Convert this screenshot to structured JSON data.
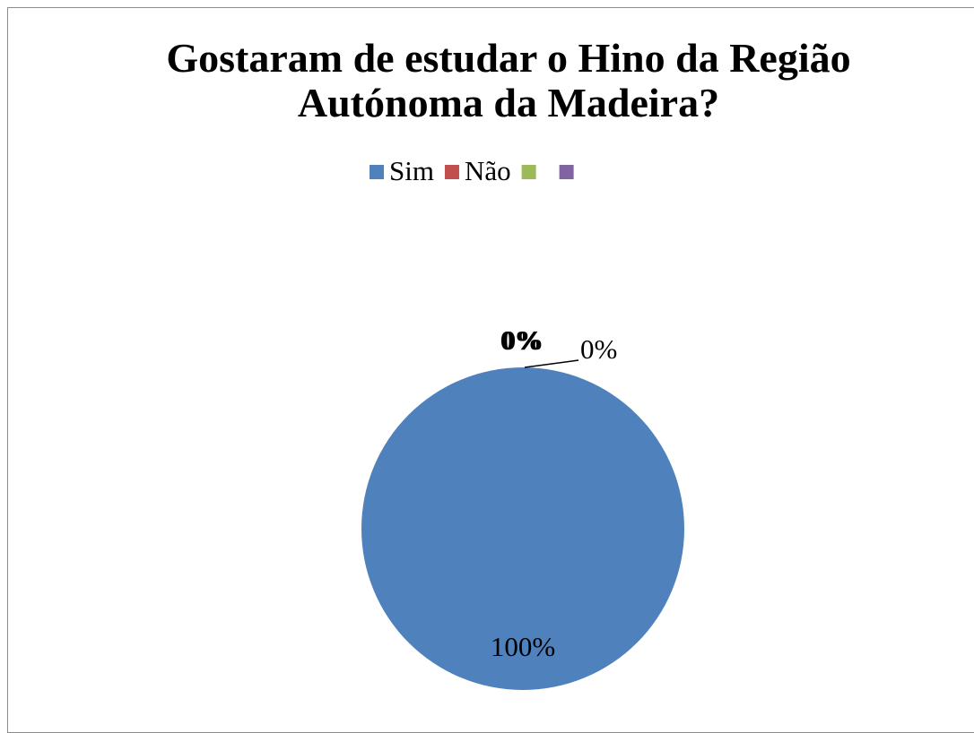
{
  "chart_data": {
    "type": "pie",
    "title": "Gostaram de estudar o Hino da Região Autónoma da Madeira?",
    "categories": [
      "Sim",
      "Não",
      null,
      null
    ],
    "values": [
      100,
      0,
      0,
      0
    ],
    "value_labels": [
      "100%",
      "0%",
      "0%",
      "0%"
    ],
    "colors": [
      "#4f81bd",
      "#c0504d",
      "#9bbb59",
      "#8064a2"
    ],
    "legend": "top"
  }
}
